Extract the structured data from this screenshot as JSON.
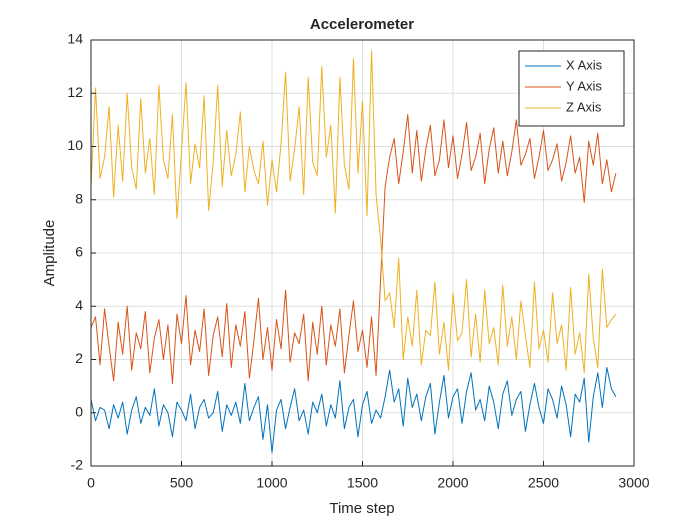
{
  "chart_data": {
    "type": "line",
    "title": "Accelerometer",
    "x_label": "Time step",
    "y_label": "Amplitude",
    "x": [
      0,
      25,
      50,
      75,
      100,
      125,
      150,
      175,
      200,
      225,
      250,
      275,
      300,
      325,
      350,
      375,
      400,
      425,
      450,
      475,
      500,
      525,
      550,
      575,
      600,
      625,
      650,
      675,
      700,
      725,
      750,
      775,
      800,
      825,
      850,
      875,
      900,
      925,
      950,
      975,
      1000,
      1025,
      1050,
      1075,
      1100,
      1125,
      1150,
      1175,
      1200,
      1225,
      1250,
      1275,
      1300,
      1325,
      1350,
      1375,
      1400,
      1425,
      1450,
      1475,
      1500,
      1525,
      1550,
      1575,
      1600,
      1625,
      1650,
      1675,
      1700,
      1725,
      1750,
      1775,
      1800,
      1825,
      1850,
      1875,
      1900,
      1925,
      1950,
      1975,
      2000,
      2025,
      2050,
      2075,
      2100,
      2125,
      2150,
      2175,
      2200,
      2225,
      2250,
      2275,
      2300,
      2325,
      2350,
      2375,
      2400,
      2425,
      2450,
      2475,
      2500,
      2525,
      2550,
      2575,
      2600,
      2625,
      2650,
      2675,
      2700,
      2725,
      2750,
      2775,
      2800,
      2825,
      2850,
      2875,
      2900
    ],
    "series": [
      {
        "name": "X Axis",
        "color": "#0072BD",
        "values": [
          0.5,
          -0.3,
          0.2,
          0.1,
          -0.6,
          0.3,
          -0.2,
          0.4,
          -0.8,
          0.1,
          0.6,
          -0.4,
          0.2,
          -0.1,
          0.9,
          -0.5,
          0.3,
          0.0,
          -0.9,
          0.4,
          0.1,
          -0.3,
          0.7,
          -0.6,
          0.2,
          0.5,
          -0.2,
          0.0,
          0.8,
          -0.7,
          0.3,
          -0.1,
          0.4,
          -0.4,
          1.1,
          -0.3,
          0.2,
          0.6,
          -1.0,
          0.3,
          -1.5,
          0.1,
          0.5,
          -0.6,
          0.2,
          0.9,
          -0.3,
          0.1,
          -0.8,
          0.4,
          0.0,
          0.7,
          -0.5,
          0.3,
          -0.2,
          1.2,
          -0.6,
          0.2,
          0.5,
          -0.9,
          0.3,
          0.8,
          -0.4,
          0.1,
          -0.2,
          0.6,
          1.6,
          0.4,
          0.9,
          -0.5,
          1.3,
          0.2,
          0.7,
          -0.3,
          0.6,
          1.1,
          -0.8,
          0.4,
          1.4,
          -0.2,
          0.6,
          0.9,
          -0.4,
          0.8,
          1.5,
          0.1,
          0.5,
          -0.3,
          1.0,
          0.4,
          -0.6,
          0.7,
          1.2,
          -0.1,
          0.5,
          0.8,
          -0.7,
          0.3,
          1.1,
          0.2,
          -0.4,
          0.9,
          0.5,
          -0.2,
          1.0,
          0.3,
          -0.9,
          0.7,
          0.4,
          1.3,
          -1.1,
          0.6,
          1.5,
          0.2,
          1.7,
          0.9,
          0.6
        ]
      },
      {
        "name": "Y Axis",
        "color": "#D95319",
        "values": [
          3.2,
          3.6,
          1.8,
          3.9,
          2.5,
          1.2,
          3.4,
          2.2,
          4.0,
          1.6,
          3.0,
          2.4,
          3.8,
          1.5,
          2.8,
          3.5,
          2.0,
          3.3,
          1.1,
          3.7,
          2.6,
          4.4,
          1.8,
          3.1,
          2.3,
          3.9,
          1.4,
          2.9,
          3.6,
          2.1,
          4.1,
          1.7,
          3.3,
          2.5,
          3.8,
          1.3,
          2.7,
          4.3,
          2.0,
          3.2,
          1.6,
          3.5,
          2.4,
          4.6,
          1.9,
          3.0,
          2.6,
          3.7,
          1.2,
          3.4,
          2.2,
          4.0,
          1.8,
          3.3,
          2.5,
          3.9,
          1.5,
          2.9,
          4.2,
          2.3,
          3.1,
          1.7,
          3.6,
          1.4,
          5.0,
          8.5,
          9.6,
          10.3,
          8.6,
          9.8,
          11.2,
          9.0,
          10.6,
          8.7,
          9.9,
          10.8,
          8.9,
          9.5,
          11.0,
          9.2,
          10.4,
          8.8,
          9.7,
          10.9,
          9.1,
          9.6,
          10.5,
          8.6,
          9.9,
          10.7,
          9.0,
          10.2,
          8.9,
          9.8,
          11.0,
          9.3,
          9.7,
          10.3,
          8.8,
          9.6,
          10.6,
          9.1,
          9.5,
          10.1,
          8.7,
          9.4,
          10.4,
          9.0,
          9.6,
          7.9,
          10.2,
          9.3,
          10.5,
          8.6,
          9.5,
          8.3,
          9.0
        ]
      },
      {
        "name": "Z Axis",
        "color": "#EDB120",
        "values": [
          8.5,
          12.2,
          8.8,
          9.6,
          11.5,
          8.1,
          10.8,
          8.7,
          12.0,
          9.2,
          8.4,
          11.8,
          9.0,
          10.3,
          8.2,
          12.3,
          9.5,
          8.8,
          11.2,
          7.3,
          9.8,
          12.4,
          8.6,
          10.1,
          9.2,
          11.9,
          7.6,
          9.4,
          12.3,
          8.5,
          10.6,
          8.9,
          9.7,
          11.3,
          8.3,
          10.0,
          9.1,
          8.6,
          10.2,
          7.8,
          9.5,
          8.3,
          10.1,
          12.8,
          8.7,
          9.9,
          11.5,
          8.2,
          12.6,
          9.4,
          8.9,
          13.0,
          9.6,
          10.8,
          7.5,
          12.6,
          9.3,
          8.4,
          13.3,
          9.0,
          11.7,
          7.4,
          13.6,
          8.2,
          6.5,
          4.2,
          4.5,
          3.2,
          5.8,
          2.0,
          3.6,
          2.5,
          4.6,
          1.8,
          3.1,
          2.9,
          4.9,
          2.2,
          3.4,
          1.6,
          4.5,
          2.7,
          3.0,
          5.0,
          2.1,
          3.7,
          1.9,
          4.6,
          2.6,
          3.2,
          1.8,
          4.8,
          2.5,
          3.6,
          2.0,
          4.2,
          2.9,
          1.7,
          4.9,
          2.4,
          3.1,
          1.9,
          4.5,
          2.6,
          3.3,
          1.6,
          4.7,
          2.2,
          3.0,
          1.5,
          5.2,
          2.8,
          1.7,
          5.4,
          3.2,
          3.5,
          3.7
        ]
      }
    ],
    "xlim": [
      0,
      3000
    ],
    "xticks": [
      0,
      500,
      1000,
      1500,
      2000,
      2500,
      3000
    ],
    "ylim": [
      -2,
      14
    ],
    "yticks": [
      -2,
      0,
      2,
      4,
      6,
      8,
      10,
      12,
      14
    ],
    "grid": true,
    "legend": "northeast"
  }
}
